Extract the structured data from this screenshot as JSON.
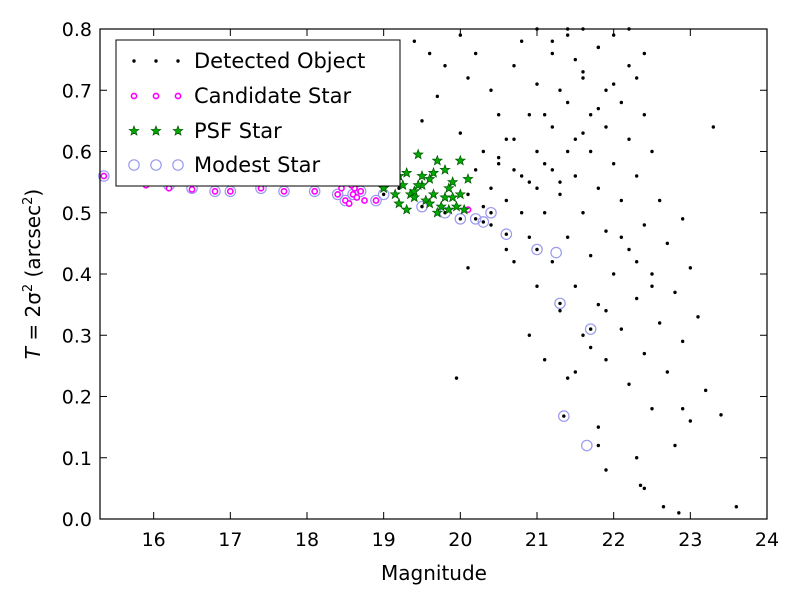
{
  "chart_data": {
    "type": "scatter",
    "xlabel": "Magnitude",
    "ylabel": {
      "prefix": "T",
      "eq": " = 2σ",
      "sup": "2",
      "unit_open": " (arcsec",
      "unit_sup": "2",
      "unit_close": ")"
    },
    "xlim": [
      15.3,
      24
    ],
    "ylim": [
      0,
      0.8
    ],
    "xticks": [
      "16",
      "17",
      "18",
      "19",
      "20",
      "21",
      "22",
      "23",
      "24"
    ],
    "yticks": [
      "0.0",
      "0.1",
      "0.2",
      "0.3",
      "0.4",
      "0.5",
      "0.6",
      "0.7",
      "0.8"
    ],
    "grid": false,
    "legend_position": "top-left",
    "legend_entries": [
      "Detected Object",
      "Candidate Star",
      "PSF Star",
      "Modest Star"
    ],
    "series": [
      {
        "name": "Detected Object",
        "color": "#000000",
        "marker": "dot",
        "x": [
          15.35,
          15.8,
          16.2,
          16.5,
          16.8,
          17.0,
          17.4,
          17.7,
          18.1,
          18.4,
          18.5,
          18.6,
          18.7,
          18.9,
          19.0,
          19.2,
          19.5,
          19.8,
          20.0,
          20.2,
          20.3,
          20.4,
          20.6,
          21.0,
          21.3,
          21.7,
          21.8,
          19.4,
          19.6,
          19.8,
          20.0,
          20.1,
          20.2,
          20.4,
          20.5,
          20.6,
          20.7,
          20.8,
          21.0,
          21.2,
          21.4,
          21.6,
          19.5,
          19.7,
          20.0,
          20.3,
          20.5,
          20.7,
          20.9,
          21.1,
          21.3,
          21.5,
          19.9,
          20.2,
          20.4,
          20.6,
          20.8,
          21.0,
          21.2,
          21.4,
          21.6,
          21.8,
          20.1,
          20.3,
          20.5,
          20.7,
          20.9,
          21.1,
          21.3,
          21.5,
          21.7,
          21.9,
          20.4,
          20.6,
          20.8,
          21.0,
          21.2,
          21.4,
          21.6,
          21.8,
          22.0,
          22.2,
          20.7,
          20.9,
          21.1,
          21.3,
          21.5,
          21.7,
          21.9,
          22.1,
          22.3,
          21.0,
          21.2,
          21.4,
          21.6,
          21.8,
          22.0,
          22.2,
          22.4,
          21.3,
          21.5,
          21.7,
          21.9,
          22.1,
          22.3,
          22.5,
          21.6,
          21.8,
          22.0,
          22.2,
          22.4,
          22.6,
          21.9,
          22.1,
          22.3,
          22.5,
          22.7,
          22.9,
          22.2,
          22.4,
          22.6,
          22.8,
          23.0,
          22.5,
          22.7,
          22.9,
          23.1,
          22.8,
          23.0,
          23.2,
          23.4,
          23.6,
          19.95,
          21.4,
          21.8,
          22.3,
          22.9,
          23.3,
          21.0,
          21.2,
          21.4,
          21.6,
          21.8,
          22.0,
          22.2,
          22.4,
          22.1,
          22.3,
          22.5,
          21.9,
          21.7,
          21.5,
          20.1,
          20.9,
          21.1,
          21.9,
          22.4,
          21.35,
          22.35,
          22.65,
          22.85
        ],
        "y": [
          0.56,
          0.56,
          0.545,
          0.54,
          0.535,
          0.535,
          0.54,
          0.535,
          0.535,
          0.53,
          0.52,
          0.53,
          0.535,
          0.52,
          0.53,
          0.54,
          0.51,
          0.5,
          0.49,
          0.49,
          0.485,
          0.5,
          0.465,
          0.44,
          0.352,
          0.31,
          0.12,
          0.78,
          0.76,
          0.74,
          0.79,
          0.72,
          0.76,
          0.7,
          0.66,
          0.62,
          0.74,
          0.78,
          0.71,
          0.76,
          0.8,
          0.73,
          0.65,
          0.69,
          0.63,
          0.6,
          0.58,
          0.57,
          0.55,
          0.66,
          0.7,
          0.75,
          0.55,
          0.57,
          0.54,
          0.52,
          0.56,
          0.6,
          0.64,
          0.68,
          0.72,
          0.77,
          0.53,
          0.51,
          0.59,
          0.62,
          0.66,
          0.58,
          0.55,
          0.62,
          0.66,
          0.7,
          0.48,
          0.44,
          0.5,
          0.54,
          0.57,
          0.6,
          0.63,
          0.67,
          0.71,
          0.74,
          0.42,
          0.46,
          0.5,
          0.53,
          0.56,
          0.6,
          0.64,
          0.68,
          0.72,
          0.38,
          0.42,
          0.46,
          0.5,
          0.54,
          0.58,
          0.62,
          0.66,
          0.34,
          0.38,
          0.43,
          0.47,
          0.52,
          0.56,
          0.6,
          0.3,
          0.35,
          0.4,
          0.44,
          0.48,
          0.52,
          0.26,
          0.31,
          0.36,
          0.4,
          0.45,
          0.49,
          0.22,
          0.27,
          0.32,
          0.37,
          0.41,
          0.18,
          0.24,
          0.29,
          0.33,
          0.12,
          0.16,
          0.21,
          0.17,
          0.02,
          0.23,
          0.23,
          0.15,
          0.1,
          0.18,
          0.64,
          0.8,
          0.78,
          0.79,
          0.8,
          0.77,
          0.79,
          0.8,
          0.76,
          0.46,
          0.42,
          0.38,
          0.34,
          0.28,
          0.24,
          0.41,
          0.3,
          0.26,
          0.08,
          0.05,
          0.168,
          0.055,
          0.02,
          0.01
        ]
      },
      {
        "name": "Candidate Star",
        "color": "#ff00ff",
        "marker": "ring",
        "x": [
          15.35,
          15.9,
          16.2,
          16.5,
          16.8,
          17.0,
          17.4,
          17.7,
          18.1,
          18.4,
          18.5,
          18.55,
          18.6,
          18.62,
          18.65,
          18.7,
          18.75,
          18.9,
          18.45,
          18.58,
          20.1
        ],
        "y": [
          0.56,
          0.545,
          0.54,
          0.538,
          0.535,
          0.535,
          0.54,
          0.535,
          0.535,
          0.53,
          0.52,
          0.515,
          0.53,
          0.54,
          0.525,
          0.535,
          0.52,
          0.52,
          0.54,
          0.545,
          0.505
        ]
      },
      {
        "name": "PSF Star",
        "color": "#00aa00",
        "marker": "star",
        "x": [
          19.0,
          19.1,
          19.2,
          19.25,
          19.3,
          19.35,
          19.4,
          19.45,
          19.5,
          19.55,
          19.6,
          19.65,
          19.7,
          19.75,
          19.8,
          19.85,
          19.9,
          19.95,
          20.0,
          20.05,
          20.1,
          19.3,
          19.5,
          19.7,
          19.9,
          19.4,
          19.6,
          19.8,
          20.0,
          19.2,
          19.15,
          19.45,
          19.65,
          19.85
        ],
        "y": [
          0.54,
          0.555,
          0.515,
          0.545,
          0.565,
          0.53,
          0.525,
          0.595,
          0.545,
          0.52,
          0.555,
          0.53,
          0.585,
          0.51,
          0.57,
          0.54,
          0.525,
          0.51,
          0.585,
          0.505,
          0.555,
          0.505,
          0.56,
          0.5,
          0.55,
          0.535,
          0.515,
          0.525,
          0.53,
          0.56,
          0.53,
          0.545,
          0.565,
          0.505
        ]
      },
      {
        "name": "Modest Star",
        "color": "#9999ee",
        "marker": "circle",
        "x": [
          15.35,
          15.8,
          15.95,
          16.2,
          16.5,
          16.8,
          17.0,
          17.4,
          17.7,
          18.1,
          18.4,
          18.5,
          18.6,
          18.7,
          18.9,
          19.0,
          19.5,
          19.8,
          20.0,
          20.2,
          20.3,
          20.4,
          20.6,
          21.0,
          21.25,
          21.3,
          21.35,
          21.7,
          21.65
        ],
        "y": [
          0.56,
          0.575,
          0.578,
          0.545,
          0.54,
          0.535,
          0.535,
          0.54,
          0.535,
          0.535,
          0.53,
          0.52,
          0.53,
          0.535,
          0.52,
          0.53,
          0.51,
          0.5,
          0.49,
          0.49,
          0.485,
          0.5,
          0.465,
          0.44,
          0.435,
          0.352,
          0.168,
          0.31,
          0.12
        ]
      }
    ]
  }
}
